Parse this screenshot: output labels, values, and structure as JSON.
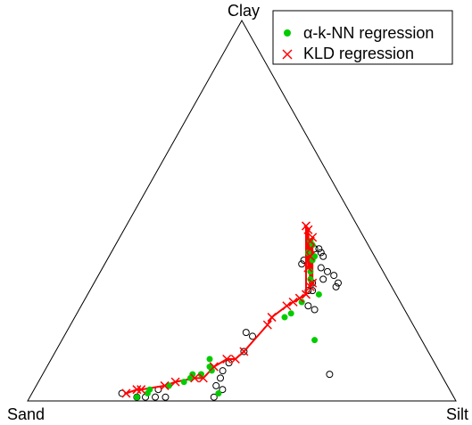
{
  "chart_data": {
    "type": "scatter",
    "plot_kind": "ternary",
    "vertices": {
      "top": "Clay",
      "left": "Sand",
      "right": "Silt"
    },
    "legend": {
      "placement": "top-right",
      "entries": [
        {
          "label": "α-k-NN regression",
          "marker": "filled-circle",
          "color": "#00cc00"
        },
        {
          "label": "KLD regression",
          "marker": "cross",
          "color": "#ff0000"
        }
      ]
    },
    "colors": {
      "observed": "#000000",
      "knn": "#00cc00",
      "kld": "#ff0000"
    },
    "coordinates": "compositions [sand, silt, clay], fractions summing to 1",
    "series": [
      {
        "marker": "open-circle",
        "points": [
          [
            0.77,
            0.21,
            0.02
          ],
          [
            0.74,
            0.25,
            0.01
          ],
          [
            0.72,
            0.27,
            0.01
          ],
          [
            0.68,
            0.32,
            0.01
          ],
          [
            0.69,
            0.29,
            0.01
          ],
          [
            0.56,
            0.43,
            0.01
          ],
          [
            0.68,
            0.29,
            0.03
          ],
          [
            0.54,
            0.42,
            0.04
          ],
          [
            0.53,
            0.44,
            0.03
          ],
          [
            0.52,
            0.42,
            0.06
          ],
          [
            0.51,
            0.42,
            0.08
          ],
          [
            0.48,
            0.42,
            0.1
          ],
          [
            0.43,
            0.44,
            0.13
          ],
          [
            0.39,
            0.44,
            0.17
          ],
          [
            0.4,
            0.42,
            0.18
          ],
          [
            0.26,
            0.67,
            0.07
          ],
          [
            0.22,
            0.53,
            0.25
          ],
          [
            0.2,
            0.51,
            0.29
          ],
          [
            0.18,
            0.51,
            0.31
          ],
          [
            0.19,
            0.52,
            0.29
          ],
          [
            0.21,
            0.55,
            0.24
          ],
          [
            0.13,
            0.57,
            0.3
          ],
          [
            0.12,
            0.57,
            0.31
          ],
          [
            0.12,
            0.55,
            0.33
          ],
          [
            0.15,
            0.53,
            0.32
          ],
          [
            0.13,
            0.53,
            0.34
          ],
          [
            0.14,
            0.51,
            0.35
          ],
          [
            0.12,
            0.5,
            0.38
          ],
          [
            0.12,
            0.49,
            0.39
          ],
          [
            0.12,
            0.48,
            0.4
          ],
          [
            0.13,
            0.47,
            0.4
          ],
          [
            0.15,
            0.47,
            0.38
          ],
          [
            0.18,
            0.46,
            0.36
          ],
          [
            0.17,
            0.46,
            0.37
          ]
        ]
      },
      {
        "name": "α-k-NN regression",
        "marker": "filled-circle",
        "points": [
          [
            0.74,
            0.25,
            0.01
          ],
          [
            0.71,
            0.27,
            0.02
          ],
          [
            0.7,
            0.27,
            0.03
          ],
          [
            0.65,
            0.31,
            0.04
          ],
          [
            0.59,
            0.35,
            0.06
          ],
          [
            0.61,
            0.34,
            0.05
          ],
          [
            0.56,
            0.37,
            0.07
          ],
          [
            0.58,
            0.35,
            0.07
          ],
          [
            0.53,
            0.39,
            0.08
          ],
          [
            0.56,
            0.37,
            0.07
          ],
          [
            0.53,
            0.38,
            0.09
          ],
          [
            0.52,
            0.37,
            0.11
          ],
          [
            0.55,
            0.44,
            0.02
          ],
          [
            0.25,
            0.59,
            0.16
          ],
          [
            0.29,
            0.49,
            0.22
          ],
          [
            0.27,
            0.5,
            0.23
          ],
          [
            0.23,
            0.51,
            0.26
          ],
          [
            0.23,
            0.51,
            0.26
          ],
          [
            0.18,
            0.54,
            0.28
          ],
          [
            0.18,
            0.5,
            0.32
          ],
          [
            0.17,
            0.49,
            0.34
          ],
          [
            0.15,
            0.48,
            0.37
          ],
          [
            0.14,
            0.48,
            0.38
          ],
          [
            0.15,
            0.46,
            0.39
          ],
          [
            0.13,
            0.46,
            0.41
          ],
          [
            0.13,
            0.45,
            0.42
          ]
        ]
      },
      {
        "name": "KLD regression",
        "marker": "cross",
        "points": [
          [
            0.76,
            0.22,
            0.02
          ],
          [
            0.73,
            0.24,
            0.03
          ],
          [
            0.72,
            0.25,
            0.03
          ],
          [
            0.66,
            0.3,
            0.04
          ],
          [
            0.63,
            0.32,
            0.05
          ],
          [
            0.58,
            0.36,
            0.06
          ],
          [
            0.56,
            0.38,
            0.06
          ],
          [
            0.52,
            0.39,
            0.09
          ],
          [
            0.48,
            0.41,
            0.11
          ],
          [
            0.46,
            0.43,
            0.11
          ],
          [
            0.43,
            0.44,
            0.13
          ],
          [
            0.34,
            0.46,
            0.2
          ],
          [
            0.32,
            0.46,
            0.22
          ],
          [
            0.27,
            0.48,
            0.25
          ],
          [
            0.25,
            0.49,
            0.26
          ],
          [
            0.23,
            0.5,
            0.27
          ],
          [
            0.21,
            0.51,
            0.28
          ],
          [
            0.19,
            0.51,
            0.3
          ],
          [
            0.18,
            0.51,
            0.31
          ],
          [
            0.17,
            0.48,
            0.35
          ],
          [
            0.15,
            0.47,
            0.38
          ],
          [
            0.14,
            0.46,
            0.4
          ],
          [
            0.13,
            0.45,
            0.42
          ],
          [
            0.12,
            0.45,
            0.43
          ],
          [
            0.12,
            0.43,
            0.45
          ],
          [
            0.12,
            0.42,
            0.46
          ]
        ],
        "trend_line": true
      }
    ]
  }
}
